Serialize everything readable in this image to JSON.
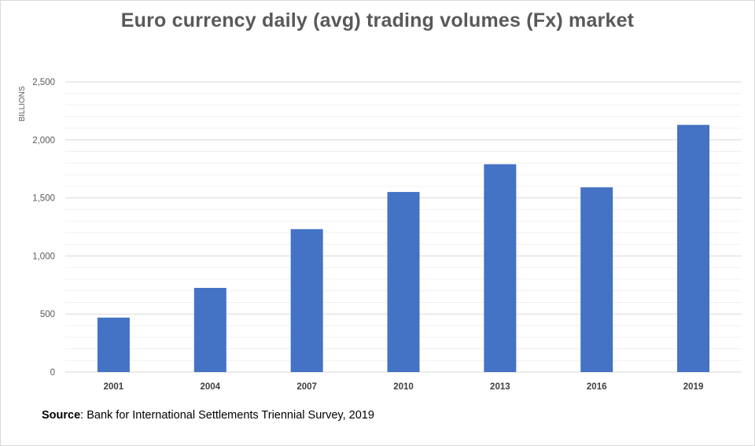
{
  "chart_data": {
    "type": "bar",
    "title": "Euro currency daily (avg) trading volumes (Fx) market",
    "ylabel": "BILLIONS",
    "xlabel": "",
    "categories": [
      "2001",
      "2004",
      "2007",
      "2010",
      "2013",
      "2016",
      "2019"
    ],
    "values": [
      469,
      725,
      1231,
      1551,
      1790,
      1591,
      2129
    ],
    "ylim": [
      0,
      2500
    ],
    "yticks": [
      0,
      500,
      1000,
      1500,
      2000,
      2500
    ],
    "ytick_labels": [
      "0",
      "500",
      "1,000",
      "1,500",
      "2,000",
      "2,500"
    ],
    "grid": true,
    "legend": "none",
    "bar_color": "#4472c4"
  },
  "source": {
    "label": "Source",
    "text": ": Bank for International Settlements Triennial Survey, 2019"
  }
}
